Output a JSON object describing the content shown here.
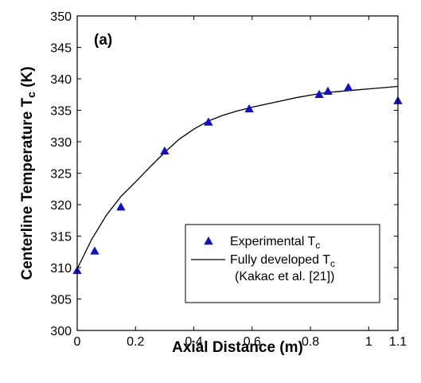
{
  "chart_data": {
    "type": "scatter",
    "panel_label": "(a)",
    "xlabel": "Axial Distance (m)",
    "ylabel": {
      "main": "Centerline Temperature T",
      "sub": "c",
      "unit": " (K)"
    },
    "xlim": [
      0,
      1.1
    ],
    "ylim": [
      300,
      350
    ],
    "x_ticks": [
      0,
      0.2,
      0.4,
      0.6,
      0.8,
      1,
      1.1
    ],
    "x_tick_labels": [
      "0",
      "0.2",
      "0.4",
      "0.6",
      "0.8",
      "1",
      "1.1"
    ],
    "y_ticks": [
      300,
      305,
      310,
      315,
      320,
      325,
      330,
      335,
      340,
      345,
      350
    ],
    "y_tick_labels": [
      "300",
      "305",
      "310",
      "315",
      "320",
      "325",
      "330",
      "335",
      "340",
      "345",
      "350"
    ],
    "grid": false,
    "legend_position": "bottom-right",
    "series": [
      {
        "name": "Experimental T",
        "name_sub": "c",
        "marker": "triangle",
        "color": "#1010c8",
        "x": [
          0.0,
          0.06,
          0.15,
          0.3,
          0.45,
          0.59,
          0.83,
          0.86,
          0.93,
          1.1
        ],
        "y": [
          309.5,
          312.6,
          319.6,
          328.5,
          333.1,
          335.2,
          337.5,
          338.0,
          338.6,
          336.5
        ]
      },
      {
        "name": "Fully developed T",
        "name_sub": "c",
        "name_line2": "(Kakac et al. [21])",
        "marker": "line",
        "color": "#000000",
        "x": [
          0.0,
          0.05,
          0.1,
          0.15,
          0.2,
          0.25,
          0.3,
          0.35,
          0.4,
          0.45,
          0.5,
          0.55,
          0.6,
          0.65,
          0.7,
          0.75,
          0.8,
          0.85,
          0.9,
          0.95,
          1.0,
          1.05,
          1.1
        ],
        "y": [
          309.8,
          314.5,
          318.3,
          321.3,
          323.6,
          326.0,
          328.3,
          330.4,
          332.0,
          333.3,
          334.2,
          334.9,
          335.5,
          336.0,
          336.5,
          337.0,
          337.4,
          337.8,
          338.0,
          338.2,
          338.4,
          338.6,
          338.8
        ]
      }
    ]
  }
}
